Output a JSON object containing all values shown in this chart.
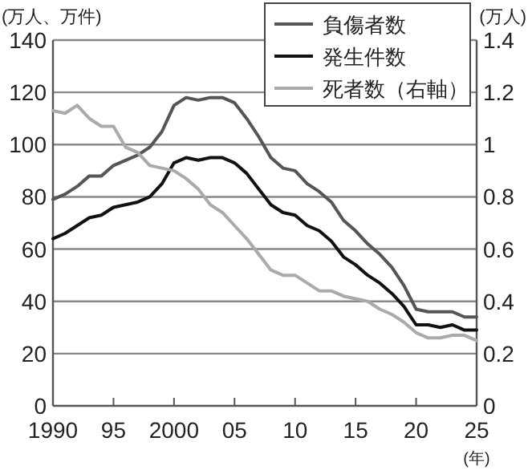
{
  "chart_data": {
    "type": "line",
    "x": [
      1990,
      1991,
      1992,
      1993,
      1994,
      1995,
      1996,
      1997,
      1998,
      1999,
      2000,
      2001,
      2002,
      2003,
      2004,
      2005,
      2006,
      2007,
      2008,
      2009,
      2010,
      2011,
      2012,
      2013,
      2014,
      2015,
      2016,
      2017,
      2018,
      2019,
      2020,
      2021,
      2022,
      2023,
      2024,
      2025
    ],
    "series": [
      {
        "name": "負傷者数",
        "color": "#555555",
        "values": [
          79,
          81,
          84,
          88,
          88,
          92,
          94,
          96,
          99,
          105,
          115,
          118,
          117,
          118,
          118,
          116,
          110,
          103,
          95,
          91,
          90,
          85,
          82,
          78,
          71,
          67,
          62,
          58,
          53,
          46,
          37,
          36,
          36,
          36,
          34,
          34
        ]
      },
      {
        "name": "発生件数",
        "color": "#111111",
        "values": [
          64,
          66,
          69,
          72,
          73,
          76,
          77,
          78,
          80,
          85,
          93,
          95,
          94,
          95,
          95,
          93,
          89,
          83,
          77,
          74,
          73,
          69,
          67,
          63,
          57,
          54,
          50,
          47,
          43,
          38,
          31,
          31,
          30,
          31,
          29,
          29
        ]
      },
      {
        "name": "死者数（右軸）",
        "color": "#aaaaaa",
        "axis": "y2",
        "values": [
          1.13,
          1.12,
          1.15,
          1.1,
          1.07,
          1.07,
          0.99,
          0.97,
          0.92,
          0.91,
          0.9,
          0.87,
          0.83,
          0.77,
          0.74,
          0.69,
          0.64,
          0.58,
          0.52,
          0.5,
          0.5,
          0.47,
          0.44,
          0.44,
          0.42,
          0.41,
          0.4,
          0.37,
          0.35,
          0.32,
          0.28,
          0.26,
          0.26,
          0.27,
          0.27,
          0.25
        ]
      }
    ],
    "xlim": [
      1990,
      2025
    ],
    "xticks": [
      1990,
      {
        "value": 1995,
        "label": "95"
      },
      2000,
      {
        "value": 2005,
        "label": "05"
      },
      {
        "value": 2010,
        "label": "10"
      },
      {
        "value": 2015,
        "label": "15"
      },
      {
        "value": 2020,
        "label": "20"
      },
      {
        "value": 2025,
        "label": "25"
      }
    ],
    "ylim": [
      0,
      140
    ],
    "yticks": [
      0,
      20,
      40,
      60,
      80,
      100,
      120,
      140
    ],
    "y2lim": [
      0,
      1.4
    ],
    "y2ticks": [
      0,
      0.2,
      0.4,
      0.6,
      0.8,
      1,
      1.2,
      1.4
    ],
    "xlabel": "(年)",
    "ylabel": "(万人、万件)",
    "y2label": "(万人)",
    "grid": "y",
    "legend": "top right",
    "marker": "none",
    "line_style": "solid"
  }
}
